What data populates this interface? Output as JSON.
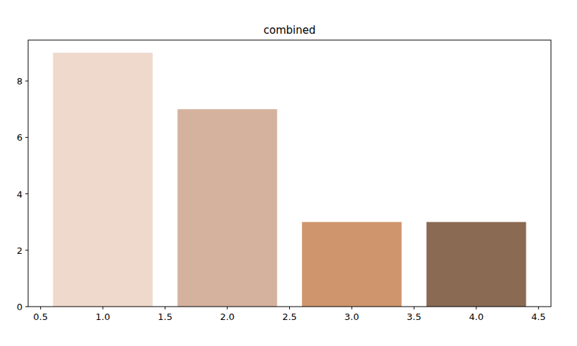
{
  "chart_data": {
    "type": "bar",
    "title": "combined",
    "x": [
      1,
      2,
      3,
      4
    ],
    "values": [
      9,
      7,
      3,
      3
    ],
    "colors": [
      "#efd9cc",
      "#d5b29e",
      "#cf956d",
      "#8a6a52"
    ],
    "xlim": [
      0.4,
      4.6
    ],
    "xticks": [
      0.5,
      {
        "value": 1,
        "label": "1.0"
      },
      1.5,
      {
        "value": 2,
        "label": "2.0"
      },
      2.5,
      {
        "value": 3,
        "label": "3.0"
      },
      3.5,
      {
        "value": 4,
        "label": "4.0"
      },
      4.5
    ],
    "ylim": [
      0,
      9.45
    ],
    "yticks": [
      0,
      2,
      4,
      6,
      8
    ],
    "grid": false
  }
}
